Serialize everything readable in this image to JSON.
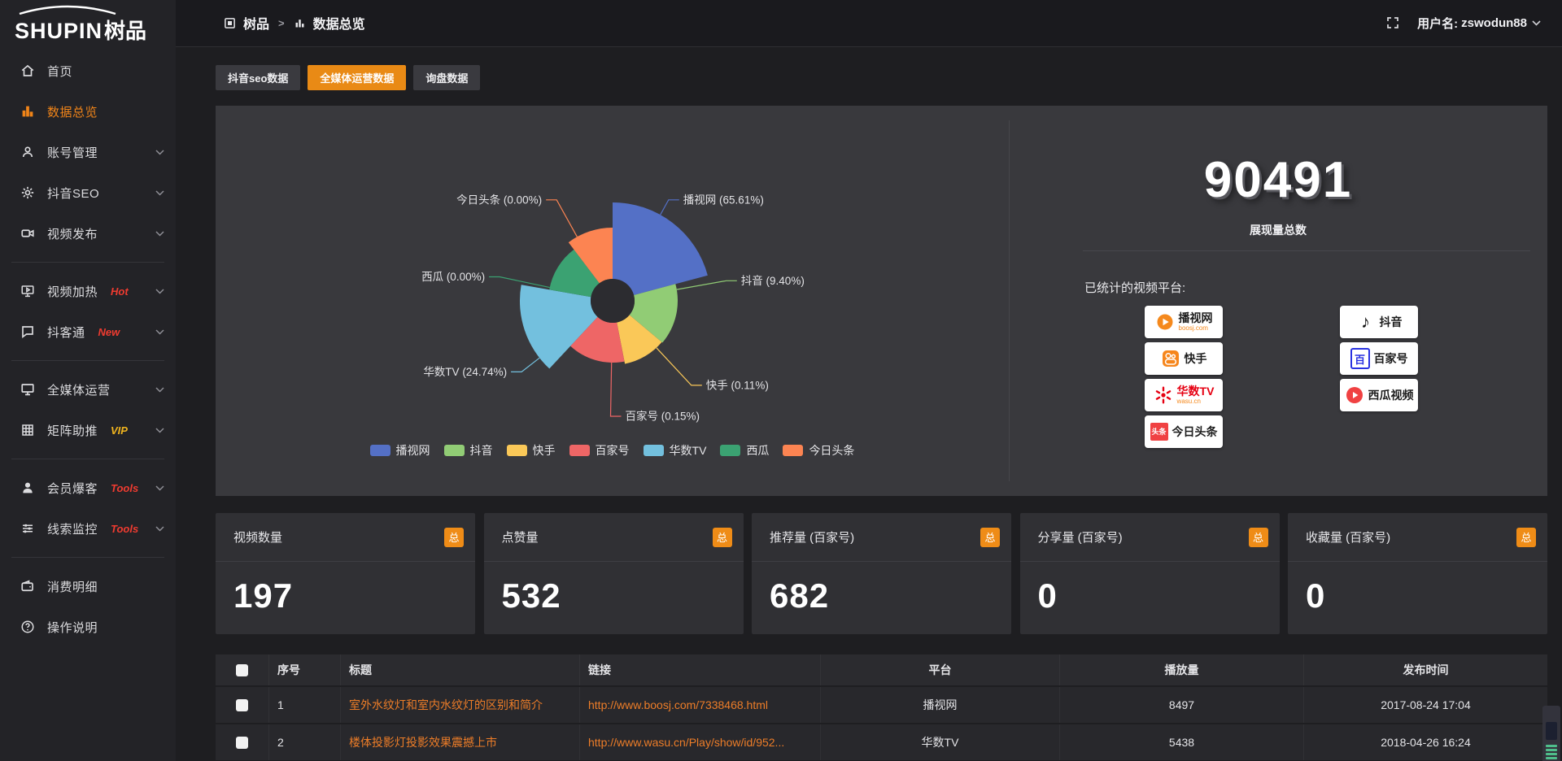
{
  "topbar": {
    "breadcrumb": {
      "app": "树品",
      "separator": ">",
      "page": "数据总览"
    },
    "user_label": "用户名:",
    "username": "zswodun88"
  },
  "sidebar": {
    "logo_en": "SHUPIN",
    "logo_cn": "树品",
    "groups": [
      {
        "items": [
          {
            "label": "首页",
            "icon": "home"
          },
          {
            "label": "数据总览",
            "icon": "chart",
            "active": true
          },
          {
            "label": "账号管理",
            "icon": "user",
            "chevron": true
          },
          {
            "label": "抖音SEO",
            "icon": "gear",
            "chevron": true
          },
          {
            "label": "视频发布",
            "icon": "video",
            "chevron": true
          }
        ]
      },
      {
        "items": [
          {
            "label": "视频加热",
            "icon": "monitor-play",
            "badge": "Hot",
            "badge_color": "#ef3b30",
            "chevron": true
          },
          {
            "label": "抖客通",
            "icon": "chat",
            "badge": "New",
            "badge_color": "#ef3b30",
            "chevron": true
          }
        ]
      },
      {
        "items": [
          {
            "label": "全媒体运营",
            "icon": "monitor",
            "chevron": true
          },
          {
            "label": "矩阵助推",
            "icon": "grid",
            "badge": "VIP",
            "badge_color": "#f0b41e",
            "chevron": true
          }
        ]
      },
      {
        "items": [
          {
            "label": "会员爆客",
            "icon": "users",
            "badge": "Tools",
            "badge_color": "#ef3b30",
            "chevron": true
          },
          {
            "label": "线索监控",
            "icon": "sliders",
            "badge": "Tools",
            "badge_color": "#ef3b30",
            "chevron": true
          }
        ]
      },
      {
        "items": [
          {
            "label": "消费明细",
            "icon": "wallet"
          },
          {
            "label": "操作说明",
            "icon": "question"
          }
        ]
      }
    ]
  },
  "tabs": [
    {
      "label": "抖音seo数据",
      "active": false
    },
    {
      "label": "全媒体运营数据",
      "active": true
    },
    {
      "label": "询盘数据",
      "active": false
    }
  ],
  "chart_data": {
    "type": "pie",
    "subtype": "nightingale-rose",
    "unit": "percent",
    "hole_radius": 27,
    "legend_position": "bottom",
    "slices": [
      {
        "name": "播视网",
        "percent": 65.61,
        "color": "#5470c6",
        "display": {
          "start": 0,
          "end": 75,
          "radius": 121,
          "label_angle": 29
        }
      },
      {
        "name": "抖音",
        "percent": 9.4,
        "color": "#91cc75",
        "display": {
          "start": 75,
          "end": 130,
          "radius": 80,
          "label_angle": 80
        }
      },
      {
        "name": "快手",
        "percent": 0.11,
        "color": "#fac858",
        "display": {
          "start": 130,
          "end": 169,
          "radius": 79,
          "label_angle": 137
        }
      },
      {
        "name": "百家号",
        "percent": 0.15,
        "color": "#ee6666",
        "display": {
          "start": 169,
          "end": 223,
          "radius": 76,
          "label_angle": 181
        }
      },
      {
        "name": "华数TV",
        "percent": 24.74,
        "color": "#73c0de",
        "display": {
          "start": 223,
          "end": 280,
          "radius": 114,
          "label_angle": 232
        }
      },
      {
        "name": "西瓜",
        "percent": 0.0,
        "color": "#3ba272",
        "display": {
          "start": 280,
          "end": 323,
          "radius": 79,
          "label_angle": 282
        }
      },
      {
        "name": "今日头条",
        "percent": 0.0,
        "color": "#fc8452",
        "display": {
          "start": 323,
          "end": 360,
          "radius": 90,
          "label_angle": 331
        }
      }
    ]
  },
  "summary": {
    "total_value": "90491",
    "total_label": "展现量总数",
    "platforms_title": "已统计的视频平台:",
    "platforms": [
      {
        "name": "播视网",
        "sub": "boosj.com",
        "style": "boosj",
        "col": 0
      },
      {
        "name": "抖音",
        "style": "douyin",
        "col": 1
      },
      {
        "name": "快手",
        "style": "kuaishou",
        "col": 0
      },
      {
        "name": "百家号",
        "style": "baijiahao",
        "col": 1
      },
      {
        "name": "华数TV",
        "sub": "wasu.cn",
        "style": "wasu",
        "col": 0
      },
      {
        "name": "西瓜视频",
        "style": "xigua",
        "col": 1
      },
      {
        "name": "今日头条",
        "glyph_text": "头条",
        "style": "toutiao",
        "col": 0
      }
    ]
  },
  "stat_cards": [
    {
      "label": "视频数量",
      "badge": "总",
      "value": "197"
    },
    {
      "label": "点赞量",
      "badge": "总",
      "value": "532"
    },
    {
      "label": "推荐量 (百家号)",
      "badge": "总",
      "value": "682"
    },
    {
      "label": "分享量 (百家号)",
      "badge": "总",
      "value": "0"
    },
    {
      "label": "收藏量 (百家号)",
      "badge": "总",
      "value": "0"
    }
  ],
  "table": {
    "headers": [
      "序号",
      "标题",
      "链接",
      "平台",
      "播放量",
      "发布时间"
    ],
    "rows": [
      {
        "index": "1",
        "title": "室外水纹灯和室内水纹灯的区别和简介",
        "link": "http://www.boosj.com/7338468.html",
        "platform": "播视网",
        "plays": "8497",
        "time": "2017-08-24 17:04"
      },
      {
        "index": "2",
        "title": "楼体投影灯投影效果震撼上市",
        "link": "http://www.wasu.cn/Play/show/id/952...",
        "platform": "华数TV",
        "plays": "5438",
        "time": "2018-04-26 16:24"
      }
    ]
  },
  "colors": {
    "accent": "#e98a15",
    "link": "#ed7d28",
    "sidebar_active": "#f08419"
  }
}
